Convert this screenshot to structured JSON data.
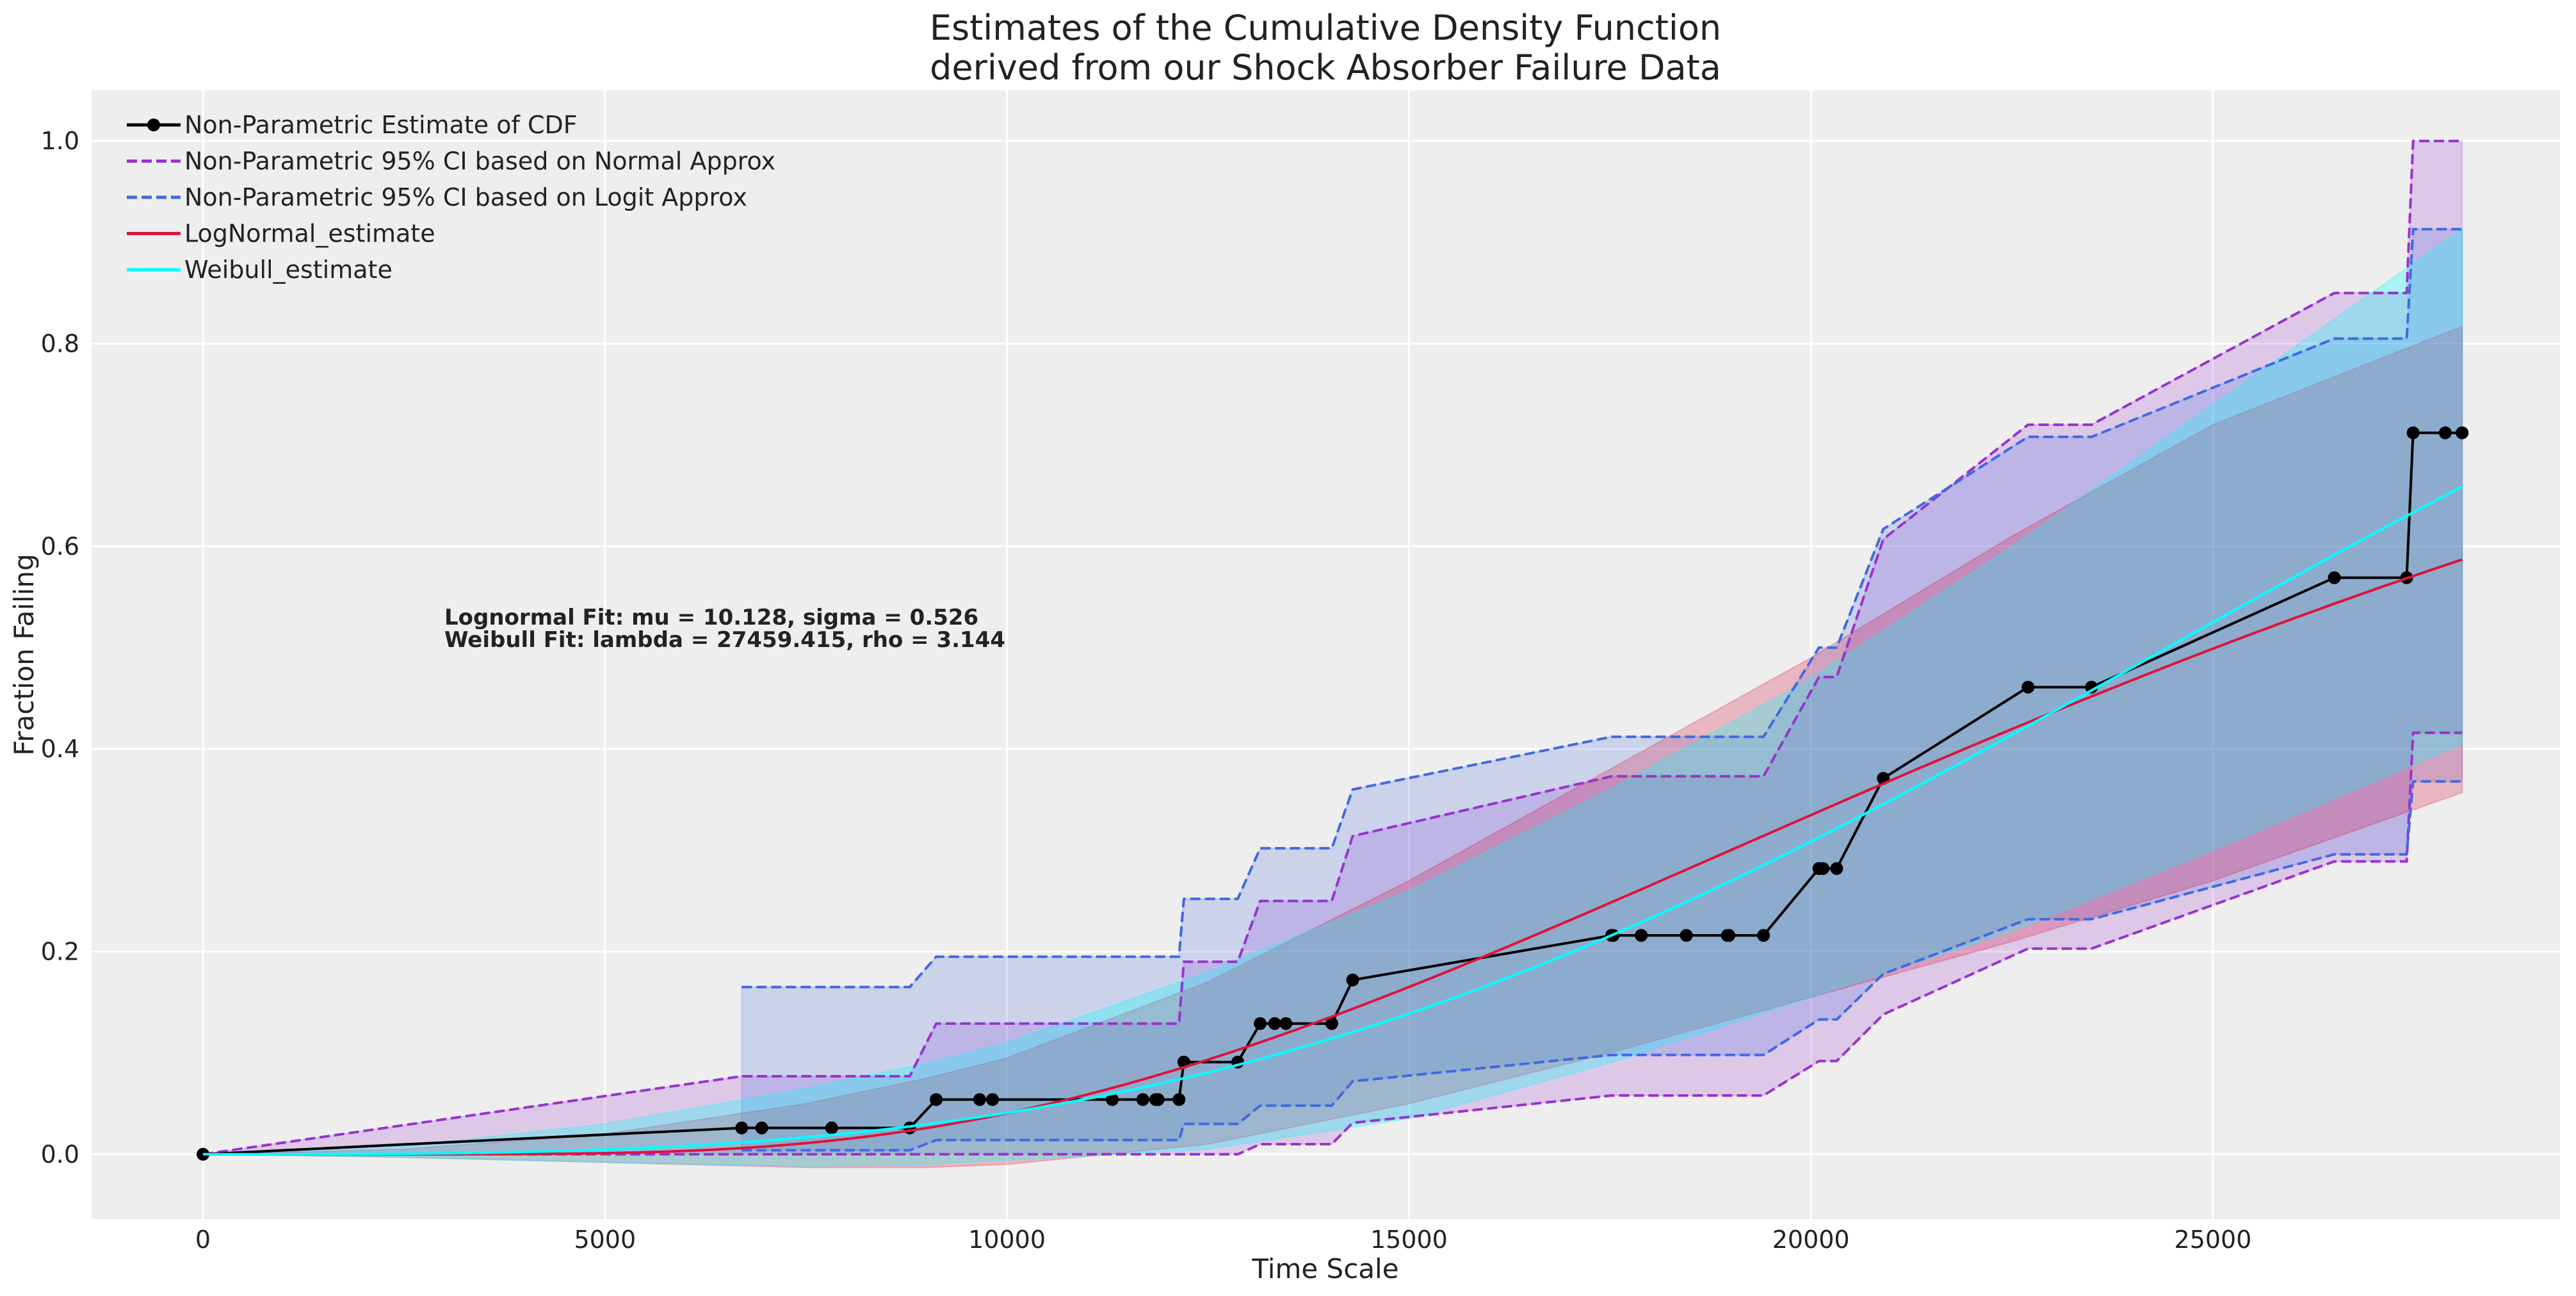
{
  "chart_data": {
    "type": "line",
    "title": [
      "Estimates of the Cumulative Density Function",
      "derived from our Shock Absorber Failure Data"
    ],
    "xlabel": "Time Scale",
    "ylabel": "Fraction Failing",
    "xlim": [
      -1386,
      29317
    ],
    "ylim": [
      -0.064,
      1.05
    ],
    "xticks": [
      0,
      5000,
      10000,
      15000,
      20000,
      25000
    ],
    "xtick_labels": [
      "0",
      "5000",
      "10000",
      "15000",
      "20000",
      "25000"
    ],
    "yticks": [
      0.0,
      0.2,
      0.4,
      0.6,
      0.8,
      1.0
    ],
    "ytick_labels": [
      "0.0",
      "0.2",
      "0.4",
      "0.6",
      "0.8",
      "1.0"
    ],
    "grid": true,
    "background": "#eeeeee",
    "legend_position": "top-left",
    "legend": [
      {
        "label": "Non-Parametric Estimate of CDF",
        "color": "#000000",
        "style": "solid-marker"
      },
      {
        "label": "Non-Parametric 95% CI based on Normal Approx",
        "color": "#9932CC",
        "style": "dashed"
      },
      {
        "label": "Non-Parametric 95% CI based on Logit Approx",
        "color": "#4169E1",
        "style": "dashed"
      },
      {
        "label": "LogNormal_estimate",
        "color": "#DC143C",
        "style": "solid"
      },
      {
        "label": "Weibull_estimate",
        "color": "#00FFFF",
        "style": "solid"
      }
    ],
    "annotations": [
      {
        "text": "Lognormal Fit: mu = 10.128, sigma = 0.526",
        "x": 3000,
        "y": 0.52
      },
      {
        "text": "Weibull Fit: lambda = 27459.415, rho = 3.144",
        "x": 3000,
        "y": 0.495
      }
    ],
    "km": {
      "x": [
        0,
        6700,
        6950,
        7820,
        8790,
        9120,
        9660,
        9820,
        11310,
        11690,
        11850,
        11880,
        12140,
        12200,
        12870,
        13150,
        13330,
        13470,
        14040,
        14300,
        17520,
        17540,
        17890,
        18450,
        18960,
        18980,
        19410,
        20100,
        20100,
        20150,
        20320,
        20900,
        22700,
        23490,
        26510,
        27410,
        27490,
        27890,
        28100
      ],
      "y": [
        0,
        0.026,
        0.026,
        0.026,
        0.026,
        0.054,
        0.054,
        0.054,
        0.054,
        0.054,
        0.054,
        0.054,
        0.054,
        0.091,
        0.091,
        0.129,
        0.129,
        0.129,
        0.129,
        0.172,
        0.216,
        0.216,
        0.216,
        0.216,
        0.216,
        0.216,
        0.216,
        0.282,
        0.282,
        0.282,
        0.282,
        0.371,
        0.461,
        0.461,
        0.569,
        0.569,
        0.712,
        0.712,
        0.712
      ]
    },
    "ci_normal": {
      "lower": [
        0,
        0,
        0,
        0,
        0,
        0,
        0,
        0,
        0,
        0,
        0,
        0,
        0,
        0,
        0,
        0.01,
        0.01,
        0.01,
        0.01,
        0.031,
        0.058,
        0.058,
        0.058,
        0.058,
        0.058,
        0.058,
        0.058,
        0.092,
        0.092,
        0.092,
        0.092,
        0.138,
        0.203,
        0.203,
        0.289,
        0.289,
        0.416,
        0.416,
        0.416
      ],
      "upper": [
        0,
        0.077,
        0.077,
        0.077,
        0.077,
        0.129,
        0.129,
        0.129,
        0.129,
        0.129,
        0.129,
        0.129,
        0.129,
        0.19,
        0.19,
        0.25,
        0.25,
        0.25,
        0.25,
        0.314,
        0.373,
        0.373,
        0.373,
        0.373,
        0.373,
        0.373,
        0.373,
        0.471,
        0.471,
        0.471,
        0.471,
        0.607,
        0.72,
        0.72,
        0.85,
        0.85,
        1.0,
        1.0,
        1.0
      ]
    },
    "ci_logit": {
      "lower": [
        null,
        0.004,
        0.004,
        0.004,
        0.004,
        0.014,
        0.014,
        0.014,
        0.014,
        0.014,
        0.014,
        0.014,
        0.014,
        0.03,
        0.03,
        0.048,
        0.048,
        0.048,
        0.048,
        0.072,
        0.098,
        0.098,
        0.098,
        0.098,
        0.098,
        0.098,
        0.098,
        0.133,
        0.133,
        0.133,
        0.133,
        0.178,
        0.232,
        0.232,
        0.296,
        0.296,
        0.368,
        0.368,
        0.368
      ],
      "upper": [
        null,
        0.165,
        0.165,
        0.165,
        0.165,
        0.195,
        0.195,
        0.195,
        0.195,
        0.195,
        0.195,
        0.195,
        0.195,
        0.252,
        0.252,
        0.302,
        0.302,
        0.302,
        0.302,
        0.36,
        0.412,
        0.412,
        0.412,
        0.412,
        0.412,
        0.412,
        0.412,
        0.5,
        0.5,
        0.5,
        0.5,
        0.617,
        0.708,
        0.708,
        0.805,
        0.805,
        0.913,
        0.913,
        0.913
      ]
    },
    "lognormal_fit": {
      "mu": 10.128,
      "sigma": 0.526,
      "x_max": 28100
    },
    "weibull_fit": {
      "lambda": 27459.415,
      "rho": 3.144,
      "x_max": 28100
    },
    "bands": {
      "x": [
        0,
        2500,
        5000,
        7500,
        9000,
        10000,
        12500,
        15000,
        17500,
        20000,
        22500,
        25000,
        28100
      ],
      "lognormal_lower": [
        0,
        -0.003,
        -0.008,
        -0.013,
        -0.013,
        -0.01,
        0.01,
        0.05,
        0.1,
        0.155,
        0.21,
        0.27,
        0.357
      ],
      "lognormal_upper": [
        0,
        0.005,
        0.02,
        0.05,
        0.075,
        0.095,
        0.17,
        0.27,
        0.38,
        0.49,
        0.61,
        0.72,
        0.817
      ],
      "weibull_lower": [
        0,
        -0.003,
        -0.008,
        -0.012,
        -0.01,
        -0.006,
        0.005,
        0.035,
        0.09,
        0.155,
        0.22,
        0.3,
        0.405
      ],
      "weibull_upper": [
        0,
        0.008,
        0.03,
        0.065,
        0.09,
        0.11,
        0.18,
        0.26,
        0.36,
        0.47,
        0.6,
        0.74,
        0.913
      ]
    }
  }
}
